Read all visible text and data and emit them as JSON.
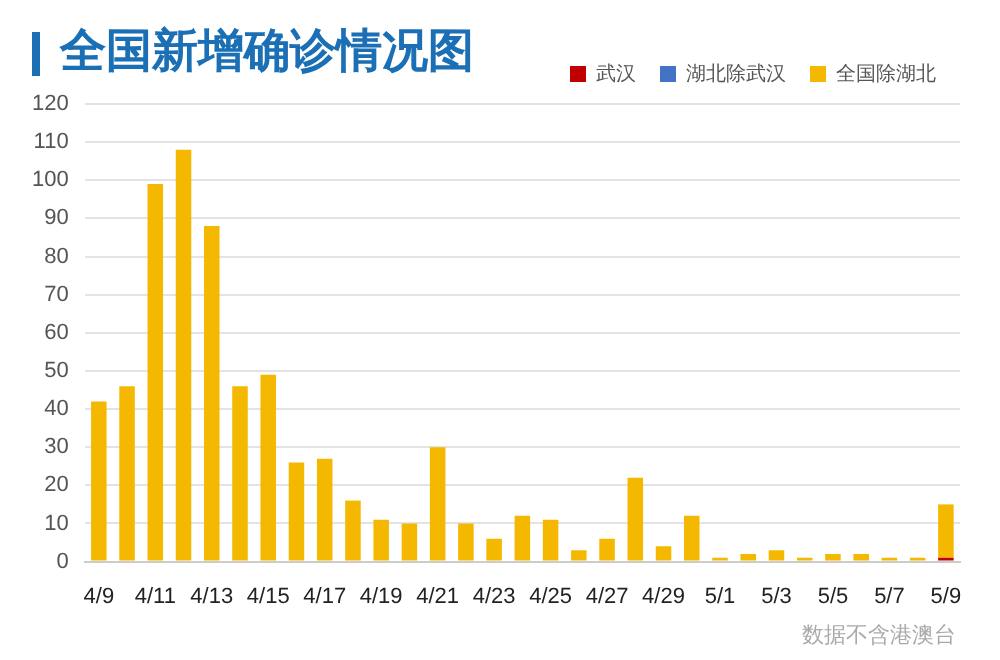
{
  "chart_data": {
    "type": "bar",
    "title": "全国新增确诊情况图",
    "stacked": true,
    "categories": [
      "4/9",
      null,
      "4/11",
      null,
      "4/13",
      null,
      "4/15",
      null,
      "4/17",
      null,
      "4/19",
      null,
      "4/21",
      null,
      "4/23",
      null,
      "4/25",
      null,
      "4/27",
      null,
      "4/29",
      null,
      "5/1",
      null,
      "5/3",
      null,
      "5/5",
      null,
      "5/7",
      null,
      "5/9"
    ],
    "series": [
      {
        "name": "武汉",
        "color": "#c00000",
        "values": [
          0,
          0,
          0,
          0,
          0,
          0,
          0,
          0,
          0,
          0,
          0,
          0,
          0,
          0,
          0,
          0,
          0,
          0,
          0,
          0,
          0,
          0,
          0,
          0,
          0,
          0,
          0,
          0,
          0,
          0,
          1
        ]
      },
      {
        "name": "湖北除武汉",
        "color": "#4472c4",
        "values": [
          0,
          0,
          0,
          0,
          0,
          0,
          0,
          0,
          0,
          0,
          0,
          0,
          0,
          0,
          0,
          0,
          0,
          0,
          0,
          0,
          0,
          0,
          0,
          0,
          0,
          0,
          0,
          0,
          0,
          0,
          0
        ]
      },
      {
        "name": "全国除湖北",
        "color": "#f5b800",
        "values": [
          42,
          46,
          99,
          108,
          88,
          46,
          49,
          26,
          27,
          16,
          11,
          10,
          30,
          10,
          6,
          12,
          11,
          3,
          6,
          22,
          4,
          12,
          1,
          2,
          3,
          1,
          2,
          2,
          1,
          1,
          14
        ]
      }
    ],
    "ylim": [
      0,
      120
    ],
    "yticks": [
      0,
      10,
      20,
      30,
      40,
      50,
      60,
      70,
      80,
      90,
      100,
      110,
      120
    ],
    "grid": "y",
    "legend": "top right",
    "annotations": [
      "数据不含港澳台"
    ]
  }
}
